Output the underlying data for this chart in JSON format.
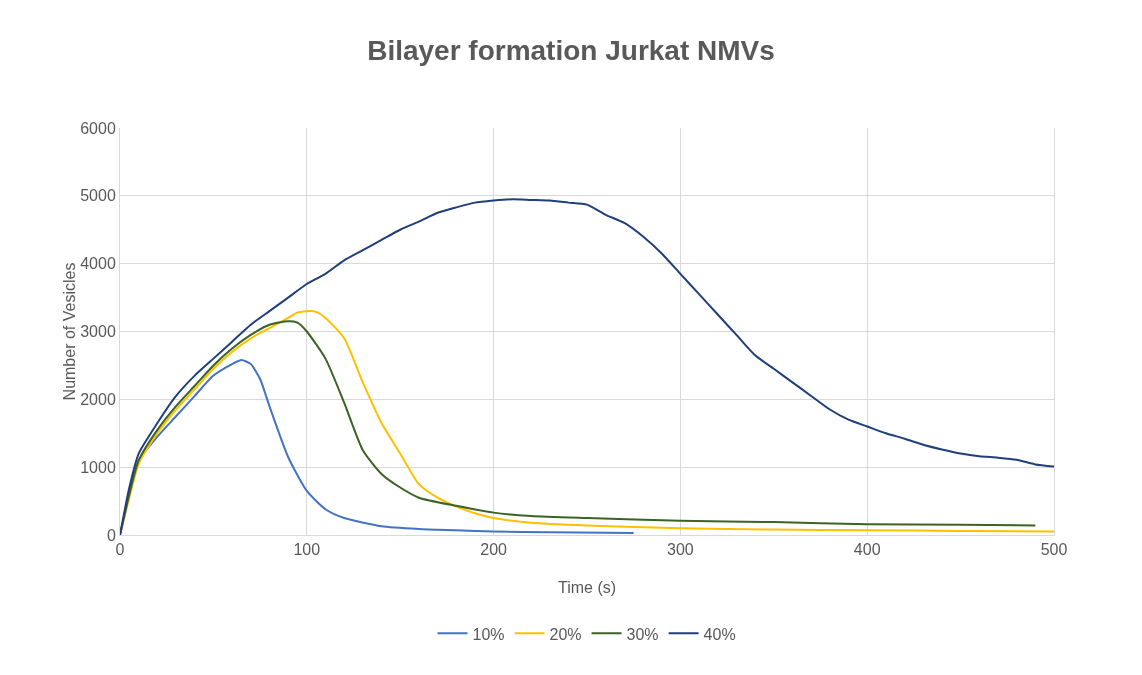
{
  "chart_data": {
    "type": "line",
    "title": "Bilayer formation Jurkat NMVs",
    "xlabel": "Time (s)",
    "ylabel": "Number of Vesicles",
    "xlim": [
      0,
      500
    ],
    "xticks": [
      0,
      100,
      200,
      300,
      400,
      500
    ],
    "ylim": [
      0,
      6000
    ],
    "yticks": [
      0,
      1000,
      2000,
      3000,
      4000,
      5000,
      6000
    ],
    "grid": true,
    "legend": "bottom",
    "marker": "none",
    "line_style": "solid",
    "series": [
      {
        "name": "10%",
        "color": "#4472c4",
        "x": [
          0,
          5,
          10,
          20,
          30,
          40,
          50,
          60,
          65,
          70,
          75,
          80,
          90,
          100,
          110,
          120,
          140,
          160,
          180,
          200,
          230,
          275
        ],
        "values": [
          0,
          600,
          1100,
          1450,
          1750,
          2050,
          2350,
          2520,
          2580,
          2520,
          2300,
          1900,
          1150,
          650,
          380,
          250,
          130,
          90,
          70,
          50,
          40,
          30
        ]
      },
      {
        "name": "20%",
        "color": "#ffc000",
        "x": [
          0,
          5,
          10,
          20,
          30,
          40,
          50,
          60,
          70,
          80,
          90,
          95,
          100,
          105,
          110,
          120,
          130,
          140,
          150,
          160,
          170,
          180,
          190,
          200,
          220,
          250,
          300,
          350,
          400,
          450,
          500
        ],
        "values": [
          0,
          550,
          1050,
          1500,
          1850,
          2150,
          2450,
          2700,
          2900,
          3050,
          3200,
          3280,
          3300,
          3290,
          3200,
          2900,
          2250,
          1650,
          1200,
          750,
          550,
          420,
          320,
          250,
          180,
          140,
          100,
          80,
          70,
          60,
          50
        ]
      },
      {
        "name": "30%",
        "color": "#3a6324",
        "x": [
          0,
          5,
          10,
          20,
          30,
          40,
          50,
          60,
          70,
          80,
          90,
          95,
          100,
          110,
          120,
          130,
          140,
          150,
          160,
          180,
          200,
          220,
          250,
          300,
          350,
          400,
          450,
          490
        ],
        "values": [
          0,
          600,
          1100,
          1550,
          1900,
          2200,
          2500,
          2750,
          2950,
          3100,
          3150,
          3130,
          3000,
          2600,
          1950,
          1250,
          900,
          700,
          550,
          430,
          330,
          280,
          250,
          210,
          190,
          160,
          150,
          140
        ]
      },
      {
        "name": "40%",
        "color": "#203f7a",
        "x": [
          0,
          5,
          10,
          20,
          30,
          40,
          50,
          60,
          70,
          80,
          90,
          100,
          110,
          120,
          130,
          140,
          150,
          160,
          170,
          180,
          190,
          200,
          210,
          220,
          230,
          240,
          250,
          260,
          270,
          280,
          290,
          300,
          310,
          320,
          330,
          340,
          350,
          360,
          370,
          380,
          390,
          400,
          410,
          420,
          430,
          440,
          450,
          460,
          470,
          480,
          490,
          500
        ],
        "values": [
          0,
          700,
          1200,
          1650,
          2050,
          2350,
          2600,
          2850,
          3100,
          3300,
          3500,
          3700,
          3850,
          4050,
          4200,
          4350,
          4500,
          4620,
          4750,
          4830,
          4900,
          4930,
          4950,
          4940,
          4930,
          4900,
          4870,
          4720,
          4600,
          4400,
          4150,
          3850,
          3550,
          3250,
          2950,
          2650,
          2450,
          2250,
          2050,
          1850,
          1700,
          1600,
          1500,
          1420,
          1330,
          1260,
          1200,
          1160,
          1140,
          1110,
          1040,
          1010
        ]
      }
    ]
  }
}
